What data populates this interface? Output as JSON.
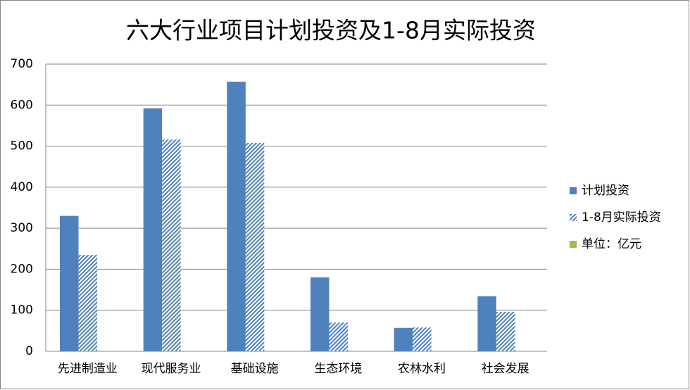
{
  "chart_data": {
    "type": "bar",
    "title": "六大行业项目计划投资及1-8月实际投资",
    "categories": [
      "先进制造业",
      "现代服务业",
      "基础设施",
      "生态环境",
      "农林水利",
      "社会发展"
    ],
    "series": [
      {
        "name": "计划投资",
        "color": "#4f81bd",
        "fill_style": "solid",
        "values": [
          330,
          592,
          657,
          180,
          57,
          134
        ]
      },
      {
        "name": "1-8月实际投资",
        "color": "#4f81bd",
        "fill_style": "hatch",
        "values": [
          235,
          516,
          508,
          70,
          58,
          96
        ]
      },
      {
        "name": "单位：亿元",
        "color": "#9bbb59",
        "fill_style": "solid",
        "values": [
          null,
          null,
          null,
          null,
          null,
          null
        ]
      }
    ],
    "ylim": [
      0,
      700
    ],
    "yticks": [
      0,
      100,
      200,
      300,
      400,
      500,
      600,
      700
    ],
    "grid": true,
    "legend": "right"
  }
}
